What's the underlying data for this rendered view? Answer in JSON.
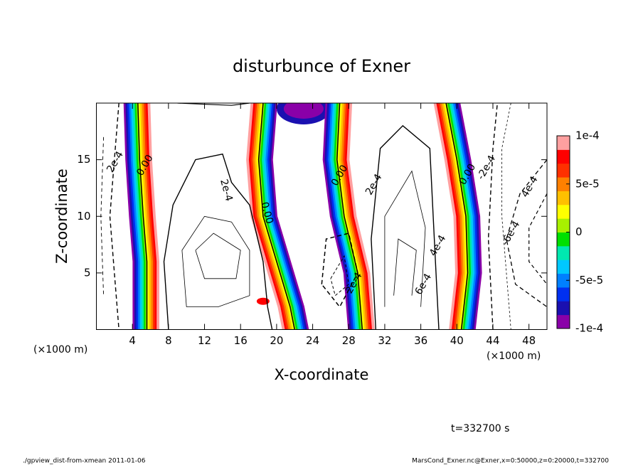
{
  "chart_data": {
    "type": "contour",
    "title": "disturbunce of Exner",
    "x_label": "X-coordinate",
    "y_label": "Z-coordinate",
    "x_unit": "(×1000 m)",
    "xlim": [
      0,
      50
    ],
    "ylim": [
      0,
      20
    ],
    "xticks": [
      4,
      8,
      12,
      16,
      20,
      24,
      28,
      32,
      36,
      40,
      44,
      48
    ],
    "yticks": [
      5,
      10,
      15
    ],
    "colorbar": {
      "lim": [
        -0.0001,
        0.0001
      ],
      "ticks": [
        {
          "value": -0.0001,
          "label": "-1e-4"
        },
        {
          "value": -5e-05,
          "label": "-5e-5"
        },
        0,
        {
          "value": 5e-05,
          "label": "5e-5"
        },
        {
          "value": 0.0001,
          "label": "1e-4"
        }
      ],
      "colors": [
        "#8a00a8",
        "#1a10b0",
        "#0030f0",
        "#0080ff",
        "#00c8ff",
        "#00e8b0",
        "#00e000",
        "#a8f000",
        "#ffff00",
        "#ffc000",
        "#ff8000",
        "#ff3000",
        "#ff0000",
        "#ffa0a0"
      ]
    },
    "contour_labels": [
      {
        "text": "2e-4",
        "x": 2.1,
        "z": 14.8
      },
      {
        "text": "0.00",
        "x": 5.4,
        "z": 14.5
      },
      {
        "text": "2e-4",
        "x": 14.4,
        "z": 12.3
      },
      {
        "text": "0.00",
        "x": 18.9,
        "z": 10.3
      },
      {
        "text": "0.00",
        "x": 27.0,
        "z": 13.6
      },
      {
        "text": "2e-4",
        "x": 30.8,
        "z": 12.8
      },
      {
        "text": "0.00",
        "x": 41.2,
        "z": 13.7
      },
      {
        "text": "-2e-4",
        "x": 43.3,
        "z": 14.3
      },
      {
        "text": "4e-4",
        "x": 48.1,
        "z": 12.6
      },
      {
        "text": "-6e-4",
        "x": 46.0,
        "z": 8.5
      },
      {
        "text": "4e-4",
        "x": 37.9,
        "z": 7.4
      },
      {
        "text": "6e-4",
        "x": 36.3,
        "z": 4.0
      },
      {
        "text": "2e-4",
        "x": 28.6,
        "z": 4.1
      }
    ],
    "annotation": "t=332700 s",
    "footer_left": "./gpview_dist-from-xmean  2011-01-06",
    "footer_right": "MarsCond_Exner.nc@Exner,x=0:50000,z=0:20000,t=332700"
  }
}
